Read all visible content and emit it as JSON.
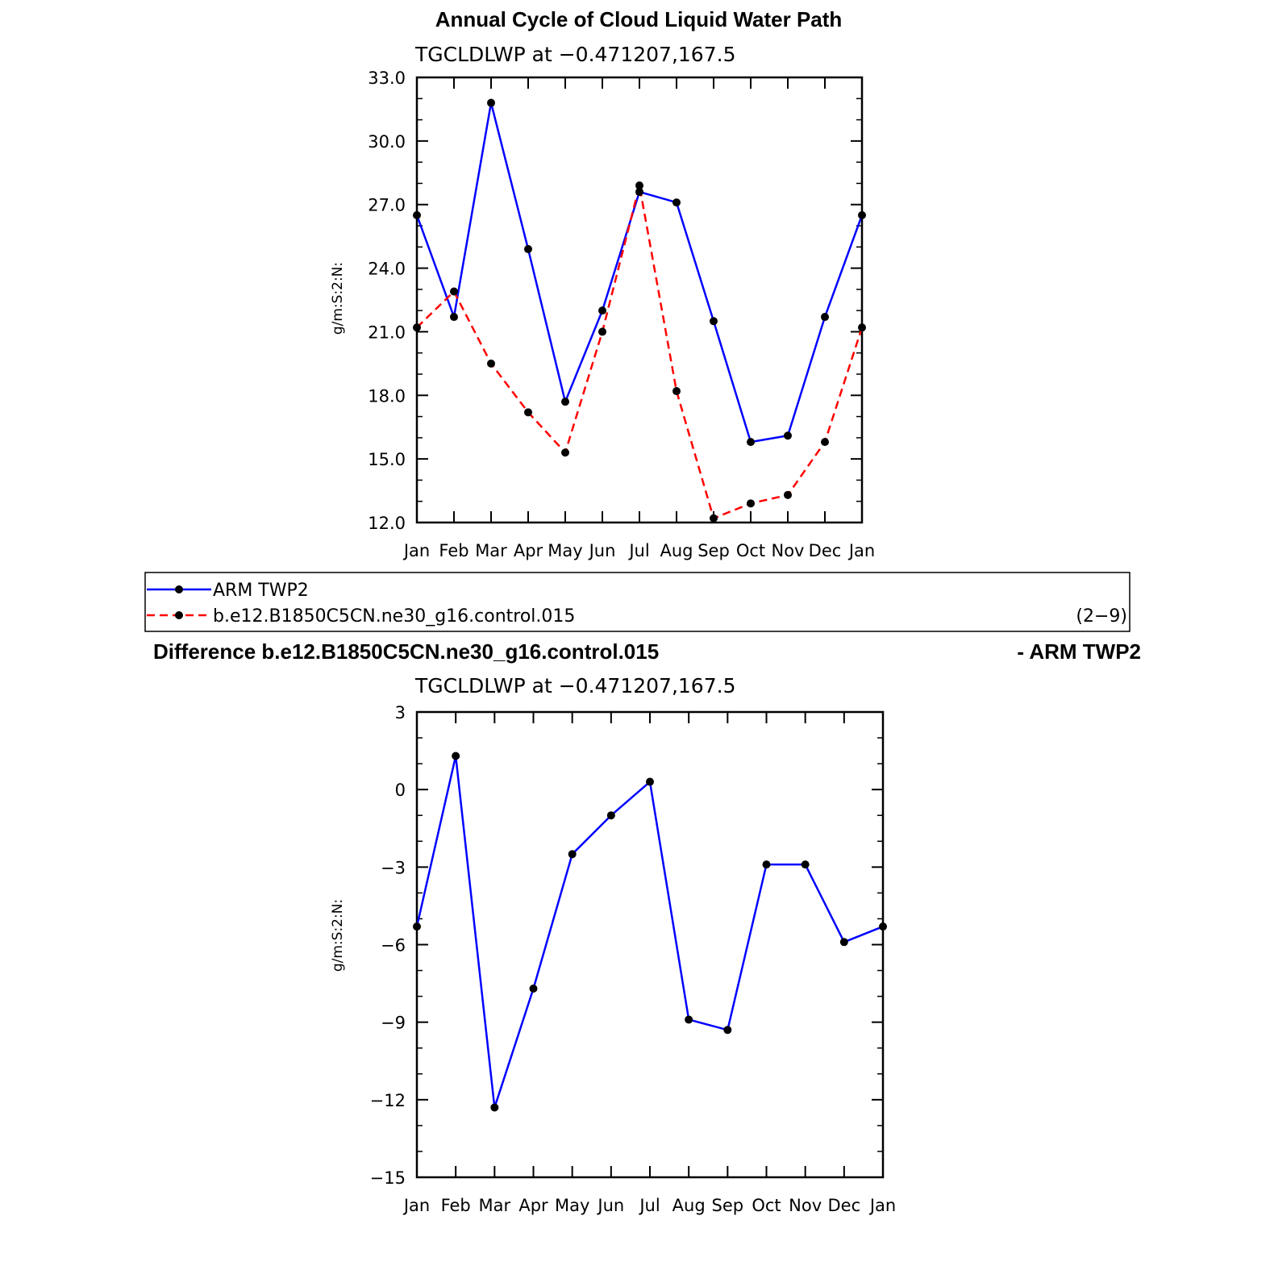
{
  "chart_data": [
    {
      "type": "line",
      "title": "Annual Cycle of Cloud Liquid Water Path",
      "subtitle": "TGCLDLWP  at  −0.471207,167.5",
      "ylabel": "g/m:S:2:N:",
      "xlabel": "",
      "categories": [
        "Jan",
        "Feb",
        "Mar",
        "Apr",
        "May",
        "Jun",
        "Jul",
        "Aug",
        "Sep",
        "Oct",
        "Nov",
        "Dec",
        "Jan"
      ],
      "ylim": [
        12.0,
        33.0
      ],
      "yticks": [
        12.0,
        15.0,
        18.0,
        21.0,
        24.0,
        27.0,
        30.0,
        33.0
      ],
      "ytick_labels": [
        "12.0",
        "15.0",
        "18.0",
        "21.0",
        "24.0",
        "27.0",
        "30.0",
        "33.0"
      ],
      "series": [
        {
          "name": "ARM TWP2",
          "color": "#0000ff",
          "dashed": false,
          "values": [
            26.5,
            21.7,
            31.8,
            24.9,
            17.7,
            22.0,
            27.6,
            27.1,
            21.5,
            15.8,
            16.1,
            21.7,
            26.5
          ]
        },
        {
          "name": "b.e12.B1850C5CN.ne30_g16.control.015",
          "color": "#ff0000",
          "dashed": true,
          "values": [
            21.2,
            22.9,
            19.5,
            17.2,
            15.3,
            21.0,
            27.9,
            18.2,
            12.2,
            12.9,
            13.3,
            15.8,
            21.2
          ]
        }
      ],
      "grid": false,
      "legend": "bottom"
    },
    {
      "type": "line",
      "title": "Difference b.e12.B1850C5CN.ne30_g16.control.015",
      "title_right": "- ARM TWP2",
      "subtitle": "TGCLDLWP  at  −0.471207,167.5",
      "ylabel": "g/m:S:2:N:",
      "xlabel": "",
      "categories": [
        "Jan",
        "Feb",
        "Mar",
        "Apr",
        "May",
        "Jun",
        "Jul",
        "Aug",
        "Sep",
        "Oct",
        "Nov",
        "Dec",
        "Jan"
      ],
      "ylim": [
        -15,
        3
      ],
      "yticks": [
        -15,
        -12,
        -9,
        -6,
        -3,
        0,
        3
      ],
      "ytick_labels": [
        "−15",
        "−12",
        "−9",
        "−6",
        "−3",
        "0",
        "3"
      ],
      "series": [
        {
          "color": "#0000ff",
          "dashed": false,
          "values": [
            -5.3,
            1.3,
            -12.3,
            -7.7,
            -2.5,
            -1.0,
            0.3,
            -8.9,
            -9.3,
            -2.9,
            -2.9,
            -5.9,
            -5.3
          ]
        }
      ],
      "grid": false
    }
  ],
  "legend": {
    "entries": [
      "ARM TWP2",
      "b.e12.B1850C5CN.ne30_g16.control.015"
    ],
    "tag": "(2−9)"
  }
}
